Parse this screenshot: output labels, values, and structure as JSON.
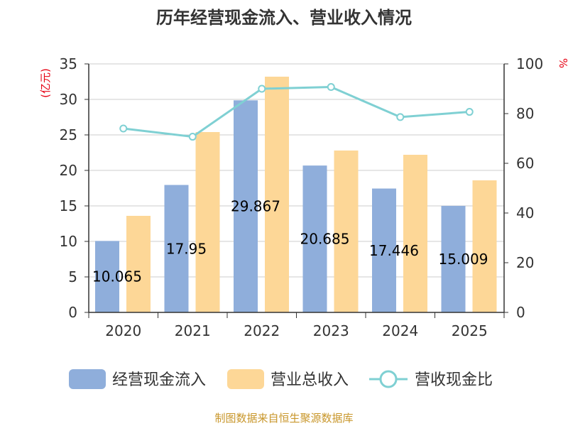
{
  "chart_data": {
    "type": "bar",
    "title": "历年经营现金流入、营业收入情况",
    "categories": [
      "2020",
      "2021",
      "2022",
      "2023",
      "2024",
      "2025"
    ],
    "series": [
      {
        "name": "经营现金流入",
        "axis": "left",
        "kind": "bar",
        "color": "#8faedb",
        "values": [
          10.065,
          17.95,
          29.867,
          20.685,
          17.446,
          15.009
        ],
        "labels": [
          "10.065",
          "17.95",
          "29.867",
          "20.685",
          "17.446",
          "15.009"
        ]
      },
      {
        "name": "营业总收入",
        "axis": "left",
        "kind": "bar",
        "color": "#fdd797",
        "values": [
          13.6,
          25.4,
          33.2,
          22.8,
          22.2,
          18.6
        ]
      },
      {
        "name": "营收现金比",
        "axis": "right",
        "kind": "line",
        "color": "#7fd0d3",
        "values": [
          74.0,
          70.7,
          90.0,
          90.7,
          78.6,
          80.7
        ]
      }
    ],
    "ylabel_left": "(亿元)",
    "ylabel_right": "%",
    "ylim_left": [
      0,
      35
    ],
    "ylim_right": [
      0,
      100
    ],
    "yticks_left": [
      "0",
      "5",
      "10",
      "15",
      "20",
      "25",
      "30",
      "35"
    ],
    "yticks_right": [
      "0",
      "20",
      "40",
      "60",
      "80",
      "100"
    ],
    "grid": true,
    "legend_position": "bottom"
  },
  "source": "制图数据来自恒生聚源数据库"
}
